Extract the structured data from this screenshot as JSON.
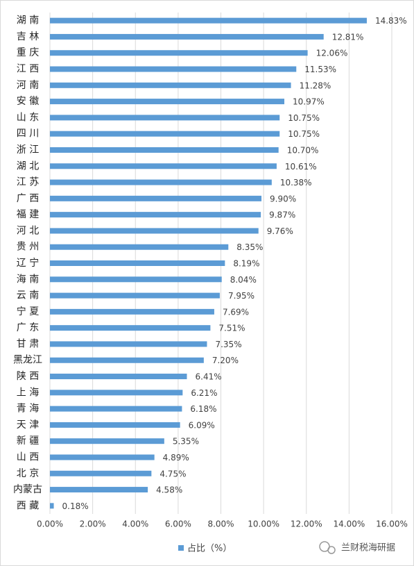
{
  "chart_data": {
    "type": "bar",
    "orientation": "horizontal",
    "categories": [
      "湖 南",
      "吉 林",
      "重 庆",
      "江 西",
      "河 南",
      "安 徽",
      "山 东",
      "四 川",
      "浙 江",
      "湖 北",
      "江 苏",
      "广 西",
      "福 建",
      "河 北",
      "贵 州",
      "辽 宁",
      "海 南",
      "云 南",
      "宁 夏",
      "广 东",
      "甘 肃",
      "黑龙江",
      "陕 西",
      "上 海",
      "青 海",
      "天 津",
      "新 疆",
      "山 西",
      "北 京",
      "内蒙古",
      "西 藏"
    ],
    "series": [
      {
        "name": "占比（%）",
        "color": "#5b9bd5",
        "values": [
          14.83,
          12.81,
          12.06,
          11.53,
          11.28,
          10.97,
          10.75,
          10.75,
          10.7,
          10.61,
          10.38,
          9.9,
          9.87,
          9.76,
          8.35,
          8.19,
          8.04,
          7.95,
          7.69,
          7.51,
          7.35,
          7.2,
          6.41,
          6.21,
          6.18,
          6.09,
          5.35,
          4.89,
          4.75,
          4.58,
          0.18
        ],
        "value_labels": [
          "14.83%",
          "12.81%",
          "12.06%",
          "11.53%",
          "11.28%",
          "10.97%",
          "10.75%",
          "10.75%",
          "10.70%",
          "10.61%",
          "10.38%",
          "9.90%",
          "9.87%",
          "9.76%",
          "8.35%",
          "8.19%",
          "8.04%",
          "7.95%",
          "7.69%",
          "7.51%",
          "7.35%",
          "7.20%",
          "6.41%",
          "6.21%",
          "6.18%",
          "6.09%",
          "5.35%",
          "4.89%",
          "4.75%",
          "4.58%",
          "0.18%"
        ]
      }
    ],
    "xlim": [
      0,
      16
    ],
    "xticks": [
      {
        "value": 0,
        "label": "0.00%"
      },
      {
        "value": 2,
        "label": "2.00%"
      },
      {
        "value": 4,
        "label": "4.00%"
      },
      {
        "value": 6,
        "label": "6.00%"
      },
      {
        "value": 8,
        "label": "8.00%"
      },
      {
        "value": 10,
        "label": "10.00%"
      },
      {
        "value": 12,
        "label": "12.00%"
      },
      {
        "value": 14,
        "label": "14.00%"
      },
      {
        "value": 16,
        "label": "16.00%"
      }
    ],
    "grid": true,
    "legend": "bottom",
    "watermark": "兰财税海研据"
  }
}
